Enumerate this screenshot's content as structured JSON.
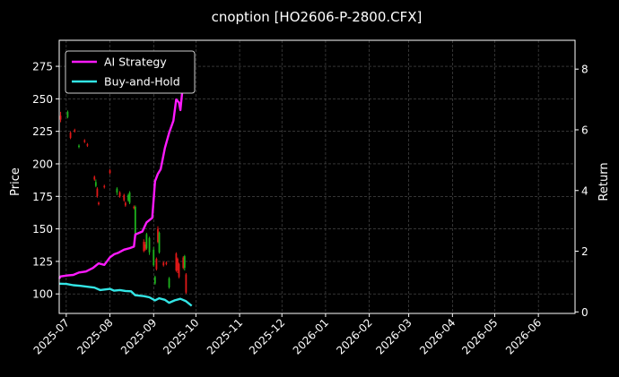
{
  "chart_data": {
    "type": "line",
    "title": "cnoption [HO2606-P-2800.CFX]",
    "ylabel_left": "Price",
    "ylabel_right": "Return",
    "xlim": [
      "2025-06-26",
      "2026-06-27"
    ],
    "ylim_left": [
      85,
      295
    ],
    "ylim_right": [
      -0.05,
      8.95
    ],
    "grid": true,
    "legend_position": "top-left",
    "colors": {
      "background": "#000000",
      "grid": "#555555",
      "up": "#1db31d",
      "down": "#e01818",
      "ai_strategy": "#ff1aff",
      "buy_and_hold": "#33e5e5"
    },
    "x_ticks": [
      "2025-07",
      "2025-08",
      "2025-09",
      "2025-10",
      "2025-11",
      "2025-12",
      "2026-01",
      "2026-02",
      "2026-03",
      "2026-04",
      "2026-05",
      "2026-06"
    ],
    "y_ticks_left": [
      100,
      125,
      150,
      175,
      200,
      225,
      250,
      275
    ],
    "y_ticks_right": [
      0,
      2,
      4,
      6,
      8
    ],
    "candles": [
      {
        "date": "2025-06-27",
        "open": 237,
        "close": 234,
        "high": 240,
        "low": 232
      },
      {
        "date": "2025-07-02",
        "open": 236,
        "close": 240,
        "high": 241,
        "low": 235
      },
      {
        "date": "2025-07-04",
        "open": 224,
        "close": 220,
        "high": 225,
        "low": 219
      },
      {
        "date": "2025-07-07",
        "open": 226,
        "close": 225,
        "high": 227,
        "low": 224
      },
      {
        "date": "2025-07-10",
        "open": 213,
        "close": 214,
        "high": 215,
        "low": 212
      },
      {
        "date": "2025-07-14",
        "open": 218,
        "close": 217,
        "high": 219,
        "low": 216
      },
      {
        "date": "2025-07-16",
        "open": 215,
        "close": 214,
        "high": 216,
        "low": 213
      },
      {
        "date": "2025-07-21",
        "open": 190,
        "close": 188,
        "high": 191,
        "low": 187
      },
      {
        "date": "2025-07-22",
        "open": 183,
        "close": 186,
        "high": 188,
        "low": 182
      },
      {
        "date": "2025-07-23",
        "open": 181,
        "close": 175,
        "high": 182,
        "low": 174
      },
      {
        "date": "2025-07-24",
        "open": 170,
        "close": 169,
        "high": 171,
        "low": 168
      },
      {
        "date": "2025-07-28",
        "open": 183,
        "close": 182,
        "high": 184,
        "low": 181
      },
      {
        "date": "2025-08-01",
        "open": 195,
        "close": 193,
        "high": 196,
        "low": 192
      },
      {
        "date": "2025-08-06",
        "open": 178,
        "close": 181,
        "high": 182,
        "low": 176
      },
      {
        "date": "2025-08-08",
        "open": 178,
        "close": 175,
        "high": 179,
        "low": 174
      },
      {
        "date": "2025-08-11",
        "open": 176,
        "close": 172,
        "high": 177,
        "low": 171
      },
      {
        "date": "2025-08-12",
        "open": 170,
        "close": 168,
        "high": 171,
        "low": 167
      },
      {
        "date": "2025-08-14",
        "open": 172,
        "close": 176,
        "high": 177,
        "low": 171
      },
      {
        "date": "2025-08-15",
        "open": 170,
        "close": 178,
        "high": 179,
        "low": 169
      },
      {
        "date": "2025-08-18",
        "open": 167,
        "close": 166,
        "high": 168,
        "low": 165
      },
      {
        "date": "2025-08-19",
        "open": 146,
        "close": 167,
        "high": 168,
        "low": 145
      },
      {
        "date": "2025-08-25",
        "open": 140,
        "close": 133,
        "high": 142,
        "low": 132
      },
      {
        "date": "2025-08-26",
        "open": 138,
        "close": 134,
        "high": 140,
        "low": 133
      },
      {
        "date": "2025-08-27",
        "open": 135,
        "close": 146,
        "high": 147,
        "low": 134
      },
      {
        "date": "2025-08-29",
        "open": 132,
        "close": 143,
        "high": 144,
        "low": 130
      },
      {
        "date": "2025-09-01",
        "open": 122,
        "close": 134,
        "high": 136,
        "low": 121
      },
      {
        "date": "2025-09-02",
        "open": 108,
        "close": 113,
        "high": 114,
        "low": 107
      },
      {
        "date": "2025-09-03",
        "open": 127,
        "close": 119,
        "high": 128,
        "low": 118
      },
      {
        "date": "2025-09-04",
        "open": 150,
        "close": 140,
        "high": 152,
        "low": 139
      },
      {
        "date": "2025-09-05",
        "open": 132,
        "close": 147,
        "high": 148,
        "low": 131
      },
      {
        "date": "2025-09-08",
        "open": 124,
        "close": 122,
        "high": 125,
        "low": 121
      },
      {
        "date": "2025-09-10",
        "open": 124,
        "close": 123,
        "high": 125,
        "low": 122
      },
      {
        "date": "2025-09-12",
        "open": 105,
        "close": 112,
        "high": 113,
        "low": 104
      },
      {
        "date": "2025-09-17",
        "open": 131,
        "close": 118,
        "high": 132,
        "low": 117
      },
      {
        "date": "2025-09-18",
        "open": 127,
        "close": 118,
        "high": 128,
        "low": 116
      },
      {
        "date": "2025-09-19",
        "open": 123,
        "close": 113,
        "high": 124,
        "low": 112
      },
      {
        "date": "2025-09-22",
        "open": 128,
        "close": 120,
        "high": 129,
        "low": 119
      },
      {
        "date": "2025-09-23",
        "open": 120,
        "close": 129,
        "high": 130,
        "low": 118
      },
      {
        "date": "2025-09-24",
        "open": 115,
        "close": 101,
        "high": 116,
        "low": 100
      }
    ],
    "series": [
      {
        "name": "AI Strategy",
        "points": [
          [
            "2025-06-26",
            1.1
          ],
          [
            "2025-06-27",
            1.17
          ],
          [
            "2025-07-02",
            1.2
          ],
          [
            "2025-07-06",
            1.22
          ],
          [
            "2025-07-10",
            1.3
          ],
          [
            "2025-07-15",
            1.33
          ],
          [
            "2025-07-20",
            1.45
          ],
          [
            "2025-07-24",
            1.6
          ],
          [
            "2025-07-28",
            1.55
          ],
          [
            "2025-08-01",
            1.8
          ],
          [
            "2025-08-04",
            1.9
          ],
          [
            "2025-08-07",
            1.95
          ],
          [
            "2025-08-11",
            2.05
          ],
          [
            "2025-08-15",
            2.1
          ],
          [
            "2025-08-18",
            2.15
          ],
          [
            "2025-08-19",
            2.55
          ],
          [
            "2025-08-24",
            2.65
          ],
          [
            "2025-08-27",
            2.95
          ],
          [
            "2025-08-31",
            3.1
          ],
          [
            "2025-09-02",
            4.3
          ],
          [
            "2025-09-04",
            4.55
          ],
          [
            "2025-09-06",
            4.7
          ],
          [
            "2025-09-09",
            5.4
          ],
          [
            "2025-09-12",
            5.9
          ],
          [
            "2025-09-15",
            6.3
          ],
          [
            "2025-09-17",
            7.0
          ],
          [
            "2025-09-19",
            6.9
          ],
          [
            "2025-09-20",
            6.65
          ],
          [
            "2025-09-22",
            7.6
          ],
          [
            "2025-09-25",
            8.05
          ],
          [
            "2025-09-28",
            8.6
          ]
        ]
      },
      {
        "name": "Buy-and-Hold",
        "points": [
          [
            "2025-06-26",
            0.93
          ],
          [
            "2025-07-01",
            0.92
          ],
          [
            "2025-07-06",
            0.88
          ],
          [
            "2025-07-11",
            0.86
          ],
          [
            "2025-07-16",
            0.83
          ],
          [
            "2025-07-21",
            0.8
          ],
          [
            "2025-07-25",
            0.72
          ],
          [
            "2025-08-01",
            0.76
          ],
          [
            "2025-08-04",
            0.7
          ],
          [
            "2025-08-08",
            0.72
          ],
          [
            "2025-08-12",
            0.69
          ],
          [
            "2025-08-16",
            0.68
          ],
          [
            "2025-08-19",
            0.55
          ],
          [
            "2025-08-25",
            0.52
          ],
          [
            "2025-08-29",
            0.48
          ],
          [
            "2025-09-02",
            0.38
          ],
          [
            "2025-09-05",
            0.45
          ],
          [
            "2025-09-09",
            0.4
          ],
          [
            "2025-09-12",
            0.3
          ],
          [
            "2025-09-16",
            0.38
          ],
          [
            "2025-09-20",
            0.43
          ],
          [
            "2025-09-24",
            0.35
          ],
          [
            "2025-09-28",
            0.2
          ]
        ]
      }
    ]
  }
}
